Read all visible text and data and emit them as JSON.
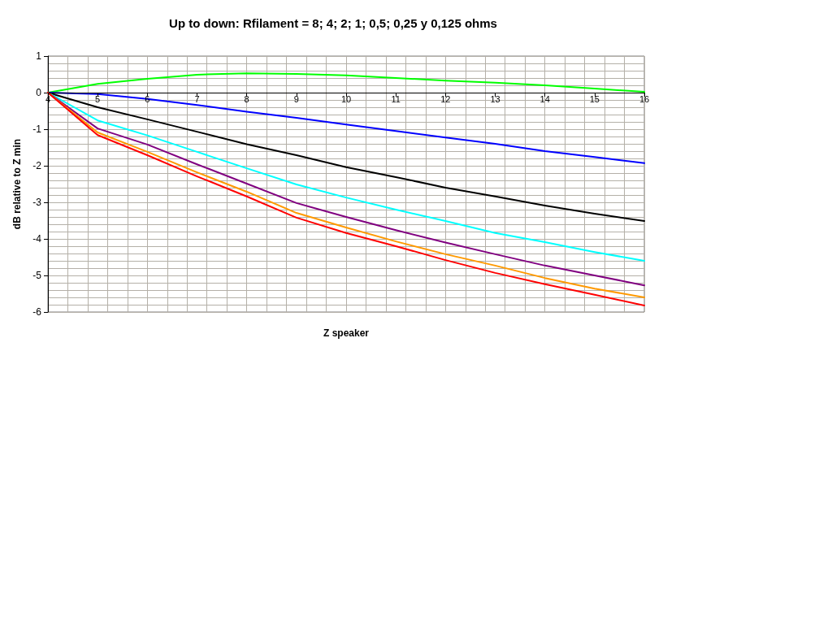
{
  "chart_data": {
    "type": "line",
    "title": "Up to down: Rfilament = 8; 4; 2; 1; 0,5; 0,25 y 0,125 ohms",
    "xlabel": "Z speaker",
    "ylabel": "dB relative to Z min",
    "x": [
      4,
      5,
      6,
      7,
      8,
      9,
      10,
      11,
      12,
      13,
      14,
      15,
      16
    ],
    "series": [
      {
        "color": "#00ff00",
        "values": [
          0,
          0.24,
          0.38,
          0.49,
          0.53,
          0.51,
          0.47,
          0.4,
          0.33,
          0.27,
          0.2,
          0.11,
          0.02
        ]
      },
      {
        "color": "#0000ff",
        "values": [
          0,
          -0.04,
          -0.17,
          -0.34,
          -0.52,
          -0.69,
          -0.87,
          -1.05,
          -1.23,
          -1.4,
          -1.6,
          -1.76,
          -1.93
        ]
      },
      {
        "color": "#000000",
        "values": [
          0,
          -0.4,
          -0.73,
          -1.07,
          -1.41,
          -1.71,
          -2.04,
          -2.31,
          -2.6,
          -2.84,
          -3.09,
          -3.31,
          -3.51
        ]
      },
      {
        "color": "#00ffff",
        "values": [
          0,
          -0.76,
          -1.17,
          -1.62,
          -2.07,
          -2.51,
          -2.87,
          -3.2,
          -3.51,
          -3.84,
          -4.09,
          -4.36,
          -4.6
        ]
      },
      {
        "color": "#800080",
        "values": [
          0,
          -0.98,
          -1.42,
          -1.96,
          -2.49,
          -3.02,
          -3.4,
          -3.76,
          -4.1,
          -4.42,
          -4.73,
          -5.0,
          -5.27
        ]
      },
      {
        "color": "#ff9900",
        "values": [
          0,
          -1.09,
          -1.62,
          -2.18,
          -2.71,
          -3.29,
          -3.69,
          -4.07,
          -4.42,
          -4.73,
          -5.07,
          -5.36,
          -5.6
        ]
      },
      {
        "color": "#ff0000",
        "values": [
          0,
          -1.16,
          -1.71,
          -2.29,
          -2.84,
          -3.42,
          -3.84,
          -4.2,
          -4.58,
          -4.93,
          -5.24,
          -5.53,
          -5.82
        ]
      }
    ],
    "xlim": [
      4,
      16
    ],
    "xticks": [
      4,
      5,
      6,
      7,
      8,
      9,
      10,
      11,
      12,
      13,
      14,
      15,
      16
    ],
    "ylim": [
      -6,
      1
    ],
    "yticks": [
      -6,
      -5,
      -4,
      -3,
      -2,
      -1,
      0,
      1
    ],
    "grid": true,
    "marker": "none",
    "line_style": "solid"
  }
}
